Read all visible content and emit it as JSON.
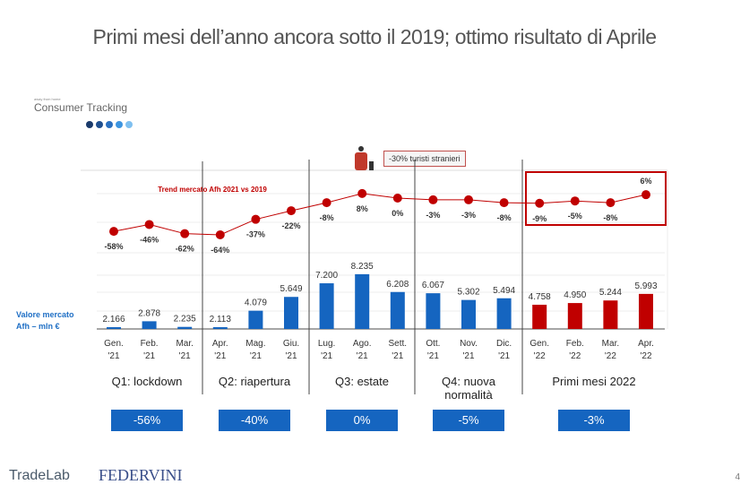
{
  "title": "Primi mesi dell’anno ancora sotto il 2019; ottimo risultato di Aprile",
  "logo_consumer": {
    "small": "away from home",
    "big": "Consumer Tracking"
  },
  "y_label": "Valore mercato Afh – mln €",
  "annotation": "-30% turisti stranieri",
  "page_number": "4",
  "logos": {
    "tradelab": "TradeLab",
    "federvini": "FEDERVINI"
  },
  "colors": {
    "bar_2021": "#1565c0",
    "bar_2022": "#c00000",
    "line": "#c00000"
  },
  "quarters": [
    {
      "label": "Q1: lockdown",
      "value": "-56%"
    },
    {
      "label": "Q2: riapertura",
      "value": "-40%"
    },
    {
      "label": "Q3: estate",
      "value": "0%"
    },
    {
      "label": "Q4: nuova normalità",
      "value": "-5%"
    },
    {
      "label": "Primi mesi 2022",
      "value": "-3%"
    }
  ],
  "chart_data": {
    "type": "bar+line",
    "categories": [
      "Gen. '21",
      "Feb. '21",
      "Mar. '21",
      "Apr. '21",
      "Mag. '21",
      "Giu. '21",
      "Lug. '21",
      "Ago. '21",
      "Sett. '21",
      "Ott. '21",
      "Nov. '21",
      "Dic. '21",
      "Gen. '22",
      "Feb. '22",
      "Mar. '22",
      "Apr. '22"
    ],
    "bar_labels": [
      "2.166",
      "2.878",
      "2.235",
      "2.113",
      "4.079",
      "5.649",
      "7.200",
      "8.235",
      "6.208",
      "6.067",
      "5.302",
      "5.494",
      "4.758",
      "4.950",
      "5.244",
      "5.993"
    ],
    "bars": [
      2166,
      2878,
      2235,
      2113,
      4079,
      5649,
      7200,
      8235,
      6208,
      6067,
      5302,
      5494,
      4758,
      4950,
      5244,
      5993
    ],
    "line_title": "Trend mercato Afh 2021 vs 2019",
    "line_labels": [
      "-58%",
      "-46%",
      "-62%",
      "-64%",
      "-37%",
      "-22%",
      "-8%",
      "8%",
      "0%",
      "-3%",
      "-3%",
      "-8%",
      "-9%",
      "-5%",
      "-8%",
      "6%"
    ],
    "line": [
      -58,
      -46,
      -62,
      -64,
      -37,
      -22,
      -8,
      8,
      0,
      -3,
      -3,
      -8,
      -9,
      -5,
      -8,
      6
    ]
  }
}
